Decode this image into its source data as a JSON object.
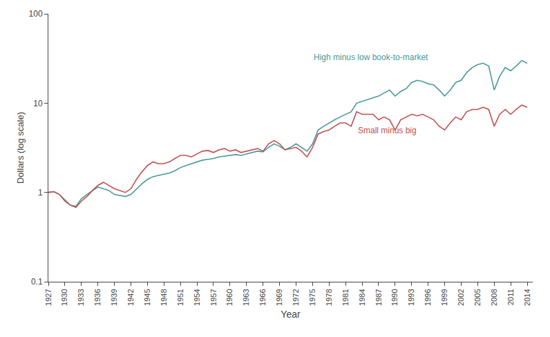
{
  "chart_data": {
    "type": "line",
    "xlabel": "Year",
    "ylabel": "Dollars (log scale)",
    "log": "y",
    "grid": false,
    "x": [
      1927,
      1928,
      1929,
      1930,
      1931,
      1932,
      1933,
      1934,
      1935,
      1936,
      1937,
      1938,
      1939,
      1940,
      1941,
      1942,
      1943,
      1944,
      1945,
      1946,
      1947,
      1948,
      1949,
      1950,
      1951,
      1952,
      1953,
      1954,
      1955,
      1956,
      1957,
      1958,
      1959,
      1960,
      1961,
      1962,
      1963,
      1964,
      1965,
      1966,
      1967,
      1968,
      1969,
      1970,
      1971,
      1972,
      1973,
      1974,
      1975,
      1976,
      1977,
      1978,
      1979,
      1980,
      1981,
      1982,
      1983,
      1984,
      1985,
      1986,
      1987,
      1988,
      1989,
      1990,
      1991,
      1992,
      1993,
      1994,
      1995,
      1996,
      1997,
      1998,
      1999,
      2000,
      2001,
      2002,
      2003,
      2004,
      2005,
      2006,
      2007,
      2008,
      2009,
      2010,
      2011,
      2012,
      2013,
      2014
    ],
    "series": [
      {
        "color": "#4a9898",
        "values": [
          1.0,
          1.02,
          0.95,
          0.82,
          0.72,
          0.7,
          0.85,
          0.95,
          1.05,
          1.15,
          1.1,
          1.05,
          0.95,
          0.92,
          0.9,
          0.95,
          1.1,
          1.25,
          1.4,
          1.5,
          1.55,
          1.6,
          1.65,
          1.75,
          1.9,
          2.0,
          2.1,
          2.2,
          2.3,
          2.35,
          2.4,
          2.5,
          2.55,
          2.6,
          2.65,
          2.6,
          2.7,
          2.8,
          2.9,
          2.85,
          3.2,
          3.5,
          3.3,
          3.0,
          3.2,
          3.5,
          3.2,
          2.9,
          3.5,
          5.0,
          5.5,
          6.0,
          6.5,
          7.0,
          7.5,
          8.0,
          10.0,
          10.5,
          11.0,
          11.5,
          12.0,
          13.0,
          14.0,
          12.0,
          13.5,
          14.5,
          17.0,
          18.0,
          17.5,
          16.5,
          16.0,
          14.0,
          12.0,
          14.0,
          17.0,
          18.0,
          22.0,
          25.0,
          27.0,
          28.0,
          26.0,
          14.0,
          20.0,
          25.0,
          23.0,
          26.0,
          30.0,
          28.0
        ]
      },
      {
        "color": "#c0504d",
        "values": [
          1.0,
          1.02,
          0.95,
          0.8,
          0.72,
          0.68,
          0.8,
          0.9,
          1.05,
          1.2,
          1.3,
          1.2,
          1.1,
          1.05,
          1.0,
          1.1,
          1.4,
          1.7,
          2.0,
          2.2,
          2.1,
          2.1,
          2.2,
          2.4,
          2.6,
          2.6,
          2.5,
          2.7,
          2.9,
          2.95,
          2.8,
          3.0,
          3.1,
          2.9,
          3.0,
          2.8,
          2.9,
          3.0,
          3.1,
          2.9,
          3.5,
          3.8,
          3.5,
          3.0,
          3.1,
          3.2,
          2.9,
          2.5,
          3.2,
          4.5,
          4.8,
          5.0,
          5.5,
          6.0,
          6.0,
          5.5,
          8.0,
          7.5,
          7.5,
          7.5,
          6.5,
          7.0,
          6.5,
          5.0,
          6.5,
          7.0,
          7.5,
          7.2,
          7.5,
          7.0,
          6.5,
          5.5,
          5.0,
          6.0,
          7.0,
          6.5,
          8.0,
          8.5,
          8.5,
          9.0,
          8.5,
          5.5,
          7.5,
          8.5,
          7.5,
          8.5,
          9.5,
          9.0
        ]
      }
    ],
    "annotations": [
      {
        "text": "High minus low book-to-market",
        "x": 1975,
        "y": 28,
        "color": "#4a9898"
      },
      {
        "text": "Small minus big",
        "x": 1983,
        "y": 5.8,
        "color": "#c0504d"
      }
    ],
    "xlim": [
      1927,
      2015
    ],
    "xticks": [
      1927,
      1930,
      1933,
      1936,
      1939,
      1942,
      1945,
      1948,
      1951,
      1954,
      1957,
      1960,
      1963,
      1966,
      1969,
      1972,
      1975,
      1978,
      1981,
      1984,
      1987,
      1990,
      1993,
      1996,
      1999,
      2002,
      2005,
      2008,
      2011,
      2014
    ],
    "ylim": [
      0.1,
      100
    ],
    "yticks": [
      0.1,
      1,
      10,
      100
    ]
  }
}
